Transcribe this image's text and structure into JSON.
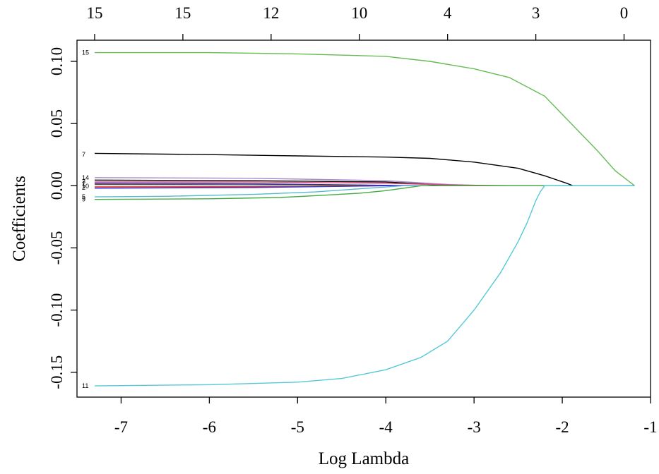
{
  "chart_data": {
    "type": "line",
    "xlabel": "Log Lambda",
    "ylabel": "Coefficients",
    "xlim": [
      -7.5,
      -1.0
    ],
    "ylim": [
      -0.17,
      0.117
    ],
    "x_ticks": [
      -7,
      -6,
      -5,
      -4,
      -3,
      -2,
      -1
    ],
    "x_tick_labels": [
      "-7",
      "-6",
      "-5",
      "-4",
      "-3",
      "-2",
      "-1"
    ],
    "y_ticks": [
      0.1,
      0.05,
      0.0,
      -0.05,
      -0.1,
      -0.15
    ],
    "y_tick_labels": [
      "0.10",
      "0.05",
      "0.00",
      "-0.05",
      "-0.10",
      "-0.15"
    ],
    "top_axis": {
      "ticks": [
        -7.3,
        -6.3,
        -5.3,
        -4.3,
        -3.3,
        -2.3,
        -1.3
      ],
      "labels": [
        "15",
        "15",
        "12",
        "10",
        "4",
        "3",
        "0"
      ]
    },
    "grid": false,
    "series": [
      {
        "name": "15",
        "color": "#66bb55",
        "x": [
          -7.3,
          -6,
          -5,
          -4,
          -3.5,
          -3,
          -2.6,
          -2.2,
          -1.9,
          -1.6,
          -1.4,
          -1.18
        ],
        "y": [
          0.107,
          0.107,
          0.106,
          0.104,
          0.1,
          0.094,
          0.087,
          0.072,
          0.05,
          0.028,
          0.012,
          0.0
        ]
      },
      {
        "name": "7",
        "color": "#000000",
        "x": [
          -7.3,
          -6,
          -5,
          -4,
          -3.5,
          -3,
          -2.5,
          -2.2,
          -1.95,
          -1.88
        ],
        "y": [
          0.026,
          0.025,
          0.024,
          0.023,
          0.022,
          0.019,
          0.014,
          0.008,
          0.002,
          0.0
        ]
      },
      {
        "name": "14",
        "color": "#aa88cc",
        "x": [
          -7.3,
          -5.5,
          -4,
          -3.3,
          -2.8
        ],
        "y": [
          0.0065,
          0.006,
          0.004,
          0.001,
          0.0
        ]
      },
      {
        "name": "",
        "color": "#000000",
        "x": [
          -7.3,
          -5.5,
          -4,
          -3.5,
          -3.2
        ],
        "y": [
          0.0045,
          0.004,
          0.003,
          0.001,
          0.0
        ]
      },
      {
        "name": "",
        "color": "#e0457b",
        "x": [
          -7.3,
          -5.5,
          -4,
          -3.2,
          -2.5
        ],
        "y": [
          0.003,
          0.003,
          0.002,
          0.0005,
          0.0
        ]
      },
      {
        "name": "",
        "color": "#2222cc",
        "x": [
          -7.3,
          -5.5,
          -4.2,
          -3.6
        ],
        "y": [
          0.002,
          0.0015,
          0.0005,
          0.0
        ]
      },
      {
        "name": "",
        "color": "#6b4a1e",
        "x": [
          -7.3,
          -5.5,
          -4.4,
          -3.9
        ],
        "y": [
          0.001,
          0.0008,
          0.0003,
          0.0
        ]
      },
      {
        "name": "",
        "color": "#dd2222",
        "x": [
          -7.3,
          -5,
          -4
        ],
        "y": [
          -0.001,
          -0.0008,
          0.0
        ]
      },
      {
        "name": "",
        "color": "#3333dd",
        "x": [
          -7.3,
          -5.5,
          -4.5,
          -4.0
        ],
        "y": [
          -0.002,
          -0.0015,
          -0.0005,
          0.0
        ]
      },
      {
        "name": "5",
        "color": "#55bbcc",
        "x": [
          -7.3,
          -6.5,
          -5.5,
          -4.8,
          -4.2,
          -3.8
        ],
        "y": [
          -0.009,
          -0.0085,
          -0.007,
          -0.005,
          -0.002,
          0.0
        ]
      },
      {
        "name": "9",
        "color": "#44aa44",
        "x": [
          -7.3,
          -6,
          -5.2,
          -4.8,
          -4.3,
          -4.0,
          -3.8,
          -3.6
        ],
        "y": [
          -0.011,
          -0.0105,
          -0.0095,
          -0.008,
          -0.006,
          -0.004,
          -0.002,
          0.0
        ]
      },
      {
        "name": "11",
        "color": "#55c8d8",
        "x": [
          -7.3,
          -6,
          -5,
          -4.5,
          -4,
          -3.6,
          -3.3,
          -3.0,
          -2.7,
          -2.5,
          -2.4,
          -2.3,
          -2.25,
          -2.2
        ],
        "y": [
          -0.161,
          -0.16,
          -0.158,
          -0.155,
          -0.148,
          -0.138,
          -0.125,
          -0.1,
          -0.07,
          -0.045,
          -0.03,
          -0.012,
          -0.005,
          0.0
        ]
      }
    ],
    "endpoint_labels": [
      {
        "text": "15",
        "y": 0.107
      },
      {
        "text": "7",
        "y": 0.025
      },
      {
        "text": "14",
        "y": 0.0065
      },
      {
        "text": "3",
        "y": 0.0035
      },
      {
        "text": "1",
        "y": 0.0015
      },
      {
        "text": "10",
        "y": -0.0005
      },
      {
        "text": "2",
        "y": -0.0015
      },
      {
        "text": "5",
        "y": -0.009
      },
      {
        "text": "9",
        "y": -0.011
      },
      {
        "text": "11",
        "y": -0.161
      }
    ]
  }
}
